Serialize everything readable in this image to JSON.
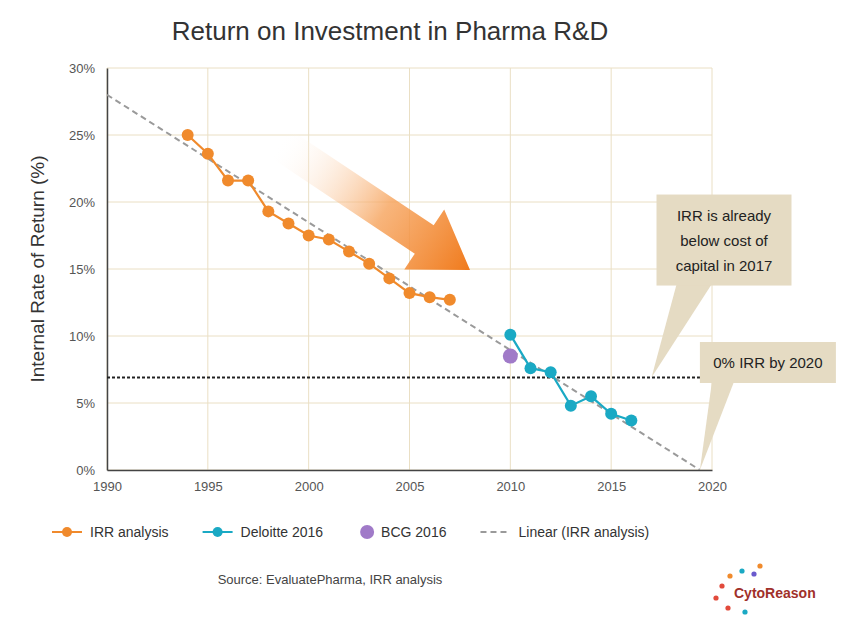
{
  "chart_data": {
    "type": "line",
    "title": "Return on Investment in Pharma R&D",
    "y_label": "Internal Rate of Return (%)",
    "source": "Source: EvaluatePharma, IRR analysis",
    "brand": "CytoReason",
    "xlim": [
      1990,
      2020
    ],
    "xticks": [
      1990,
      1995,
      2000,
      2005,
      2010,
      2015,
      2020
    ],
    "ylim": [
      0,
      30
    ],
    "yticks": [
      {
        "value": 0,
        "label": "0%"
      },
      {
        "value": 5,
        "label": "5%"
      },
      {
        "value": 10,
        "label": "10%"
      },
      {
        "value": 15,
        "label": "15%"
      },
      {
        "value": 20,
        "label": "20%"
      },
      {
        "value": 25,
        "label": "25%"
      },
      {
        "value": 30,
        "label": "30%"
      }
    ],
    "grid": true,
    "legend": "bottom",
    "series": [
      {
        "name": "IRR analysis",
        "type": "line",
        "color": "#f08a2c",
        "marker": "circle",
        "line_style": "solid",
        "x": [
          1994,
          1995,
          1996,
          1997,
          1998,
          1999,
          2000,
          2001,
          2002,
          2003,
          2004,
          2005,
          2006,
          2007
        ],
        "values": [
          25.0,
          23.6,
          21.6,
          21.6,
          19.3,
          18.4,
          17.5,
          17.2,
          16.3,
          15.4,
          14.3,
          13.2,
          12.9,
          12.7
        ]
      },
      {
        "name": "Deloitte 2016",
        "type": "line",
        "color": "#1aa9c4",
        "marker": "circle",
        "line_style": "solid",
        "x": [
          2010,
          2011,
          2012,
          2013,
          2014,
          2015,
          2016
        ],
        "values": [
          10.1,
          7.6,
          7.3,
          4.8,
          5.5,
          4.2,
          3.7
        ]
      },
      {
        "name": "BCG 2016",
        "type": "scatter",
        "color": "#a07ac8",
        "marker": "circle",
        "x": [
          2010
        ],
        "values": [
          8.5
        ]
      },
      {
        "name": "Linear (IRR analysis)",
        "type": "line",
        "color": "#9a9a9a",
        "marker": "none",
        "line_style": "dashed",
        "x": [
          1990,
          2019.4
        ],
        "values": [
          28,
          0
        ]
      }
    ],
    "reference_lines": [
      {
        "y": 6.9,
        "color": "#222222",
        "line_style": "dotted"
      }
    ],
    "annotations": [
      {
        "lines": [
          "IRR is already",
          "below cost of",
          "capital in 2017"
        ],
        "x": 2017,
        "y": 6.9
      },
      {
        "lines": [
          "0% IRR by 2020"
        ],
        "x": 2019.4,
        "y": 0
      }
    ]
  }
}
